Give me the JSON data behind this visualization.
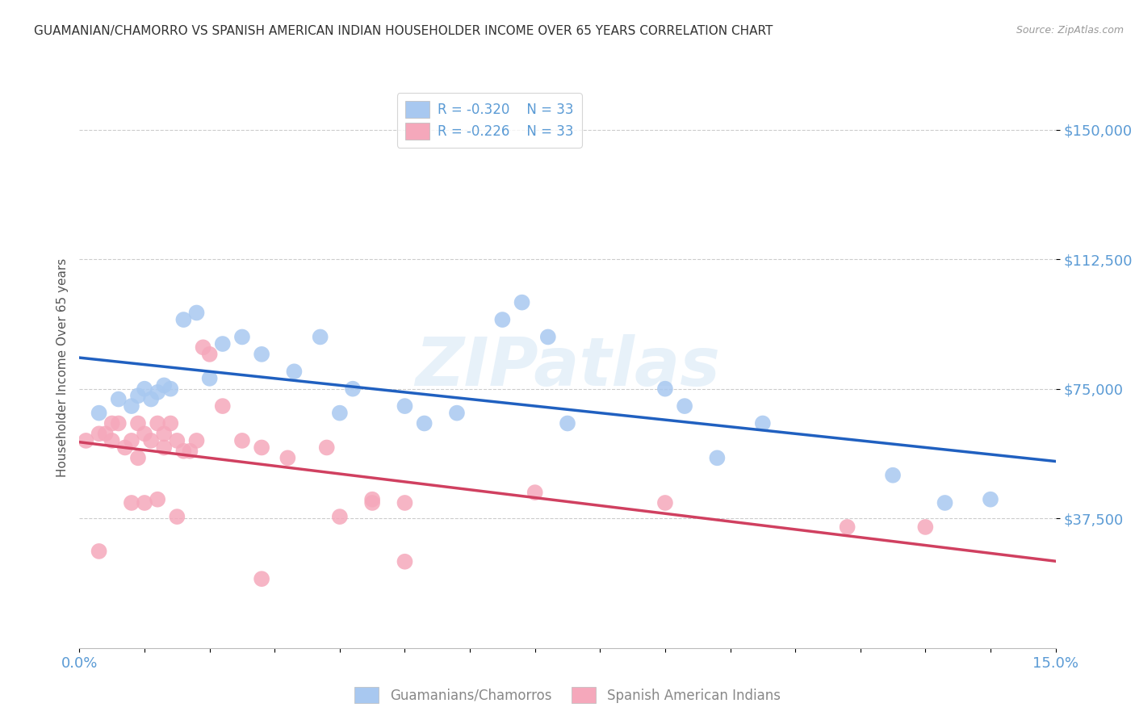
{
  "title": "GUAMANIAN/CHAMORRO VS SPANISH AMERICAN INDIAN HOUSEHOLDER INCOME OVER 65 YEARS CORRELATION CHART",
  "source": "Source: ZipAtlas.com",
  "ylabel": "Householder Income Over 65 years",
  "xlim": [
    0.0,
    0.15
  ],
  "ylim": [
    0,
    162500
  ],
  "yticks": [
    37500,
    75000,
    112500,
    150000
  ],
  "ytick_labels": [
    "$37,500",
    "$75,000",
    "$112,500",
    "$150,000"
  ],
  "xtick_positions": [
    0.0,
    0.01,
    0.02,
    0.03,
    0.04,
    0.05,
    0.06,
    0.07,
    0.08,
    0.09,
    0.1,
    0.11,
    0.12,
    0.13,
    0.14,
    0.15
  ],
  "xtick_labels": [
    "0.0%",
    "",
    "",
    "",
    "",
    "",
    "",
    "",
    "",
    "",
    "",
    "",
    "",
    "",
    "",
    "15.0%"
  ],
  "legend_label1": "Guamanians/Chamorros",
  "legend_label2": "Spanish American Indians",
  "blue_color": "#A8C8F0",
  "pink_color": "#F5A8BB",
  "line_blue": "#2060C0",
  "line_pink": "#D04060",
  "axis_color": "#5B9BD5",
  "watermark": "ZIPatlas",
  "blue_x": [
    0.003,
    0.006,
    0.008,
    0.009,
    0.01,
    0.011,
    0.012,
    0.013,
    0.014,
    0.016,
    0.018,
    0.02,
    0.022,
    0.025,
    0.028,
    0.033,
    0.037,
    0.04,
    0.042,
    0.05,
    0.053,
    0.058,
    0.065,
    0.068,
    0.072,
    0.075,
    0.09,
    0.093,
    0.098,
    0.105,
    0.125,
    0.133,
    0.14
  ],
  "blue_y": [
    68000,
    72000,
    70000,
    73000,
    75000,
    72000,
    74000,
    76000,
    75000,
    95000,
    97000,
    78000,
    88000,
    90000,
    85000,
    80000,
    90000,
    68000,
    75000,
    70000,
    65000,
    68000,
    95000,
    100000,
    90000,
    65000,
    75000,
    70000,
    55000,
    65000,
    50000,
    42000,
    43000
  ],
  "pink_x": [
    0.001,
    0.003,
    0.004,
    0.005,
    0.005,
    0.006,
    0.007,
    0.008,
    0.009,
    0.009,
    0.01,
    0.011,
    0.012,
    0.013,
    0.013,
    0.014,
    0.015,
    0.016,
    0.017,
    0.018,
    0.019,
    0.02,
    0.022,
    0.025,
    0.028,
    0.032,
    0.038,
    0.045,
    0.05,
    0.07,
    0.09,
    0.118,
    0.13
  ],
  "pink_y": [
    60000,
    62000,
    62000,
    65000,
    60000,
    65000,
    58000,
    60000,
    55000,
    65000,
    62000,
    60000,
    65000,
    62000,
    58000,
    65000,
    60000,
    57000,
    57000,
    60000,
    87000,
    85000,
    70000,
    60000,
    58000,
    55000,
    58000,
    43000,
    42000,
    45000,
    42000,
    35000,
    35000
  ],
  "pink_low_x": [
    0.003,
    0.008,
    0.01,
    0.012,
    0.015,
    0.045,
    0.05,
    0.04,
    0.028
  ],
  "pink_low_y": [
    28000,
    42000,
    42000,
    43000,
    38000,
    42000,
    25000,
    38000,
    20000
  ]
}
